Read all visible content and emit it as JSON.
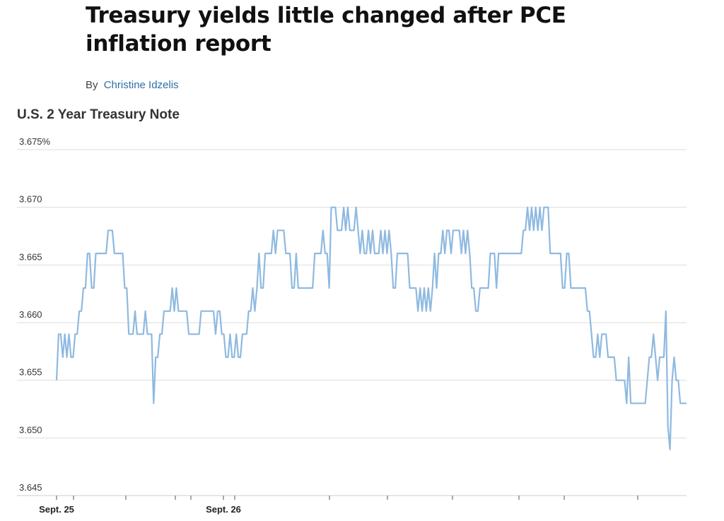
{
  "article": {
    "headline": "Treasury yields little changed after PCE inflation report",
    "byline_prefix": "By",
    "author": "Christine Idzelis"
  },
  "colors": {
    "line": "#8fb9e0",
    "grid": "#dddddd",
    "accent_link": "#2f6fa3"
  },
  "chart_data": {
    "type": "line",
    "title": "U.S. 2 Year Treasury Note",
    "xlabel": "",
    "ylabel": "",
    "ylim": [
      3.645,
      3.675
    ],
    "y_ticks": [
      "3.675%",
      "3.670",
      "3.665",
      "3.660",
      "3.655",
      "3.650",
      "3.645"
    ],
    "y_tick_values": [
      3.675,
      3.67,
      3.665,
      3.66,
      3.655,
      3.65,
      3.645
    ],
    "x_labels": [
      "Sept. 25",
      "Sept. 26"
    ],
    "grid": true,
    "series": [
      {
        "values": [
          3.655,
          3.659,
          3.659,
          3.657,
          3.659,
          3.657,
          3.659,
          3.657,
          3.657,
          3.659,
          3.659,
          3.661,
          3.661,
          3.663,
          3.663,
          3.666,
          3.666,
          3.663,
          3.663,
          3.666,
          3.666,
          3.666,
          3.666,
          3.666,
          3.666,
          3.668,
          3.668,
          3.668,
          3.666,
          3.666,
          3.666,
          3.666,
          3.666,
          3.663,
          3.663,
          3.659,
          3.659,
          3.659,
          3.661,
          3.659,
          3.659,
          3.659,
          3.659,
          3.661,
          3.659,
          3.659,
          3.659,
          3.653,
          3.657,
          3.657,
          3.659,
          3.659,
          3.661,
          3.661,
          3.661,
          3.661,
          3.663,
          3.661,
          3.663,
          3.661,
          3.661,
          3.661,
          3.661,
          3.661,
          3.659,
          3.659,
          3.659,
          3.659,
          3.659,
          3.659,
          3.661,
          3.661,
          3.661,
          3.661,
          3.661,
          3.661,
          3.661,
          3.659,
          3.661,
          3.661,
          3.659,
          3.659,
          3.657,
          3.657,
          3.659,
          3.657,
          3.657,
          3.659,
          3.657,
          3.657,
          3.659,
          3.659,
          3.659,
          3.661,
          3.661,
          3.663,
          3.661,
          3.663,
          3.666,
          3.663,
          3.663,
          3.666,
          3.666,
          3.666,
          3.666,
          3.668,
          3.666,
          3.668,
          3.668,
          3.668,
          3.668,
          3.666,
          3.666,
          3.666,
          3.663,
          3.663,
          3.666,
          3.663,
          3.663,
          3.663,
          3.663,
          3.663,
          3.663,
          3.663,
          3.663,
          3.666,
          3.666,
          3.666,
          3.666,
          3.668,
          3.666,
          3.666,
          3.663,
          3.67,
          3.67,
          3.67,
          3.668,
          3.668,
          3.668,
          3.67,
          3.668,
          3.67,
          3.668,
          3.668,
          3.668,
          3.67,
          3.668,
          3.666,
          3.668,
          3.666,
          3.666,
          3.668,
          3.666,
          3.668,
          3.666,
          3.666,
          3.666,
          3.668,
          3.666,
          3.668,
          3.666,
          3.668,
          3.666,
          3.663,
          3.663,
          3.666,
          3.666,
          3.666,
          3.666,
          3.666,
          3.666,
          3.663,
          3.663,
          3.663,
          3.663,
          3.661,
          3.663,
          3.661,
          3.663,
          3.661,
          3.663,
          3.661,
          3.663,
          3.666,
          3.663,
          3.666,
          3.666,
          3.668,
          3.666,
          3.668,
          3.668,
          3.666,
          3.668,
          3.668,
          3.668,
          3.668,
          3.666,
          3.668,
          3.666,
          3.668,
          3.666,
          3.663,
          3.663,
          3.661,
          3.661,
          3.663,
          3.663,
          3.663,
          3.663,
          3.663,
          3.666,
          3.666,
          3.666,
          3.663,
          3.666,
          3.666,
          3.666,
          3.666,
          3.666,
          3.666,
          3.666,
          3.666,
          3.666,
          3.666,
          3.666,
          3.666,
          3.668,
          3.668,
          3.67,
          3.668,
          3.67,
          3.668,
          3.67,
          3.668,
          3.67,
          3.668,
          3.67,
          3.67,
          3.67,
          3.666,
          3.666,
          3.666,
          3.666,
          3.666,
          3.666,
          3.663,
          3.663,
          3.666,
          3.666,
          3.663,
          3.663,
          3.663,
          3.663,
          3.663,
          3.663,
          3.663,
          3.663,
          3.661,
          3.661,
          3.659,
          3.657,
          3.657,
          3.659,
          3.657,
          3.659,
          3.659,
          3.659,
          3.657,
          3.657,
          3.657,
          3.657,
          3.655,
          3.655,
          3.655,
          3.655,
          3.655,
          3.653,
          3.657,
          3.653,
          3.653,
          3.653,
          3.653,
          3.653,
          3.653,
          3.653,
          3.653,
          3.655,
          3.657,
          3.657,
          3.659,
          3.657,
          3.655,
          3.657,
          3.657,
          3.657,
          3.661,
          3.651,
          3.649,
          3.655,
          3.657,
          3.655,
          3.655,
          3.653,
          3.653,
          3.653,
          3.653
        ]
      }
    ]
  }
}
